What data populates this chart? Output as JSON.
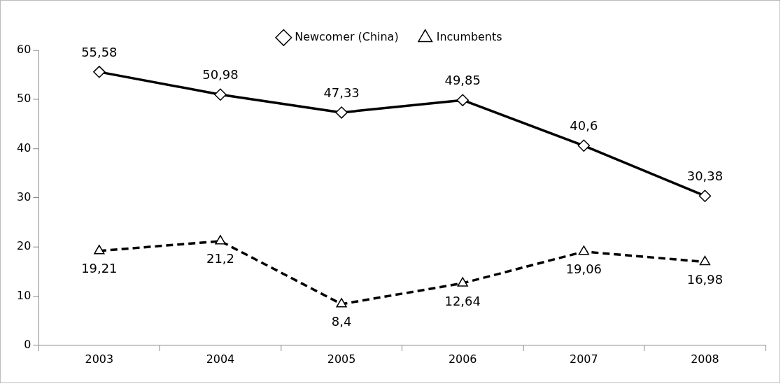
{
  "chart_data": {
    "type": "line",
    "categories": [
      "2003",
      "2004",
      "2005",
      "2006",
      "2007",
      "2008"
    ],
    "series": [
      {
        "name": "Newcomer (China)",
        "color": "#000000",
        "marker": "diamond",
        "line_style": "solid",
        "values": [
          55.58,
          50.98,
          47.33,
          49.85,
          40.6,
          30.38
        ],
        "value_labels": [
          "55,58",
          "50,98",
          "47,33",
          "49,85",
          "40,6",
          "30,38"
        ]
      },
      {
        "name": "Incumbents",
        "color": "#000000",
        "marker": "triangle",
        "line_style": "dashed",
        "values": [
          19.21,
          21.2,
          8.4,
          12.64,
          19.06,
          16.98
        ],
        "value_labels": [
          "19,21",
          "21,2",
          "8,4",
          "12,64",
          "19,06",
          "16,98"
        ]
      }
    ],
    "ylim": [
      0,
      60
    ],
    "yticks": [
      0,
      10,
      20,
      30,
      40,
      50,
      60
    ],
    "grid": false,
    "legend": "top"
  }
}
